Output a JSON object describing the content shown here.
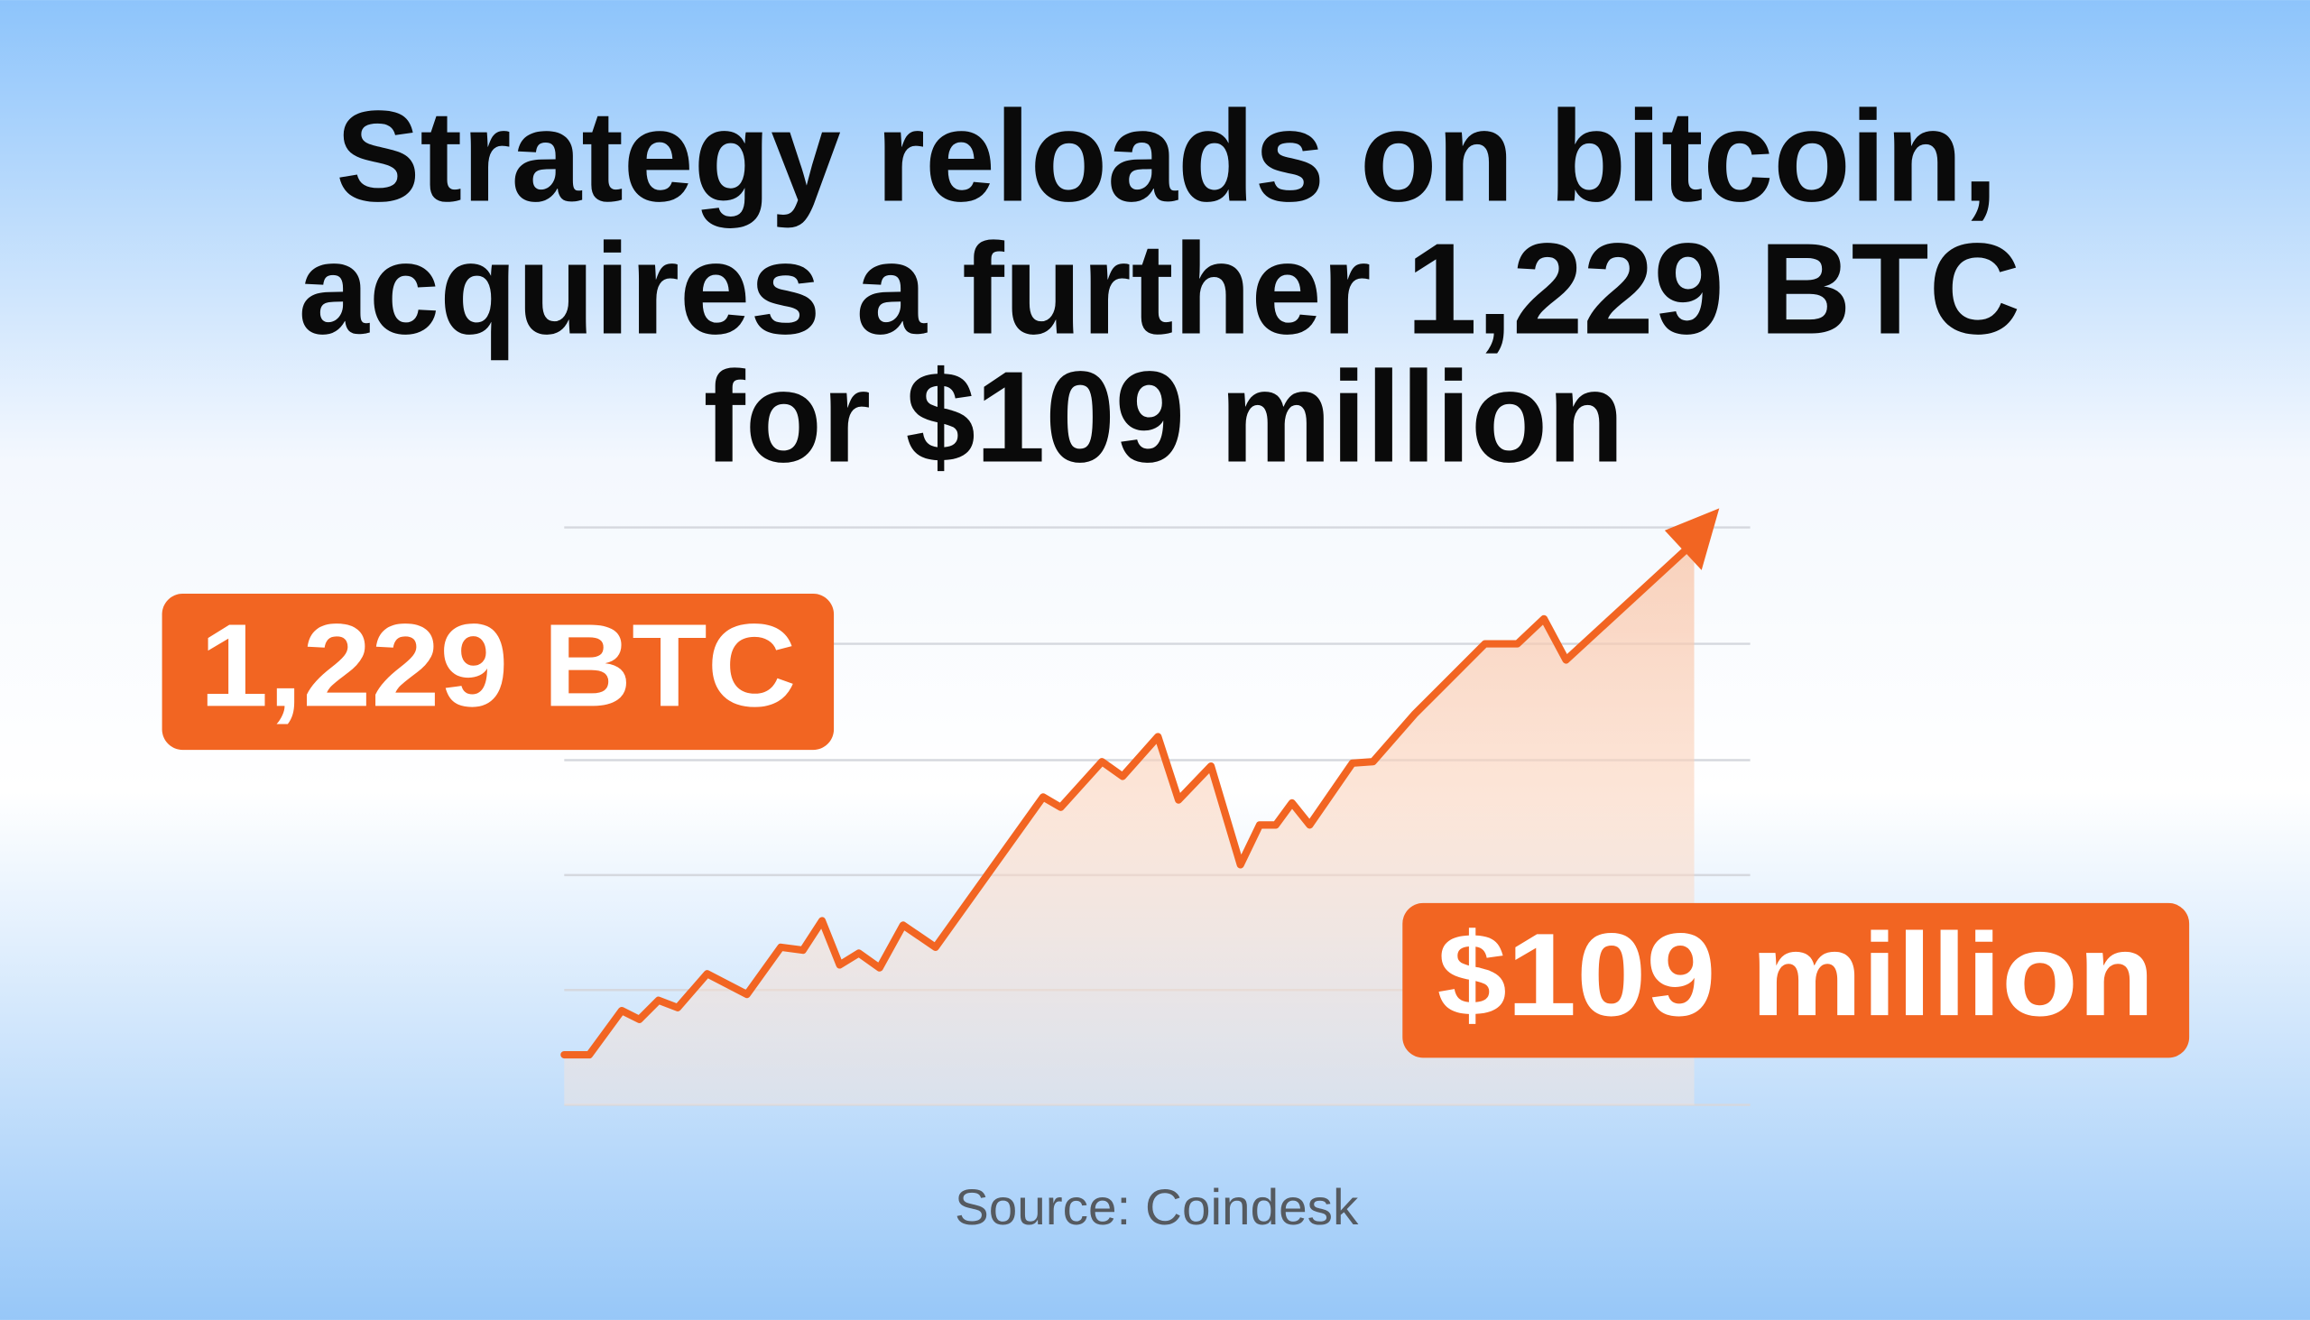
{
  "headline_lines": [
    "Strategy reloads on bitcoin,",
    "acquires a further 1,229 BTC",
    "for $109 million"
  ],
  "badges": [
    "1,229 BTC",
    "$109 million"
  ],
  "source": "Source: Coindesk"
}
